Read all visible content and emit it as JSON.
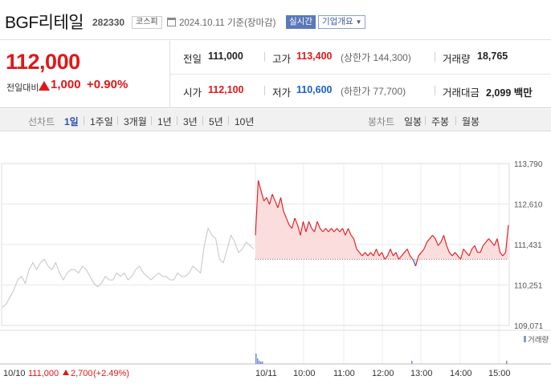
{
  "header": {
    "stock_name": "BGF리테일",
    "stock_code": "282330",
    "market": "코스피",
    "date": "2024.10.11",
    "basis": "기준(장마감)",
    "realtime_label": "실시간",
    "corp_info_label": "기업개요"
  },
  "quote": {
    "current_price": "112,000",
    "change_label": "전일대비",
    "change_amount": "1,000",
    "change_rate": "+0.90%",
    "prev_close_label": "전일",
    "prev_close": "111,000",
    "high_label": "고가",
    "high": "113,400",
    "upper_limit": "(상한가 144,300)",
    "volume_label": "거래량",
    "volume": "18,765",
    "open_label": "시가",
    "open": "112,100",
    "low_label": "저가",
    "low": "110,600",
    "lower_limit": "(하한가 77,700)",
    "turnover_label": "거래대금",
    "turnover": "2,099 백만"
  },
  "toolbar": {
    "line_chart_label": "선차트",
    "periods": [
      "1일",
      "1주일",
      "3개월",
      "1년",
      "3년",
      "5년",
      "10년"
    ],
    "active_period": "1일",
    "candle_chart_label": "봉차트",
    "candles": [
      "일봉",
      "주봉",
      "월봉"
    ]
  },
  "colors": {
    "up": "#e0171a",
    "down": "#1a5fd0",
    "prev_day_line": "#c4c4c4",
    "fill_up": "#fbd7d7"
  },
  "chart_data": {
    "type": "line",
    "y_ticks": [
      "113,790",
      "112,610",
      "111,431",
      "110,251",
      "109,071"
    ],
    "ylim": [
      109071,
      113790
    ],
    "x_ticks": [
      "10/11",
      "10:00",
      "11:00",
      "12:00",
      "13:00",
      "14:00",
      "15:00"
    ],
    "reference_price": 111000,
    "volume_legend": "거래량",
    "footer_date": "10/10",
    "footer_close": "111,000",
    "footer_change": "2,700",
    "footer_rate": "(+2.49%)",
    "prev_day_series": [
      109600,
      109700,
      109900,
      110100,
      110400,
      110500,
      110300,
      110700,
      110900,
      110700,
      110900,
      111000,
      110800,
      110700,
      110900,
      110600,
      110400,
      110600,
      110700,
      110700,
      110600,
      110800,
      110700,
      110500,
      110300,
      110200,
      110300,
      110500,
      110400,
      110400,
      110600,
      110500,
      110600,
      110400,
      110500,
      110700,
      110800,
      110600,
      110500,
      110400,
      110500,
      110600,
      110500,
      110500,
      110400,
      110400,
      110600,
      110500,
      110500,
      110600,
      110800,
      110700,
      110600,
      111400,
      111900,
      111700,
      111600,
      111000,
      110900,
      111300,
      111700,
      111500,
      111200,
      111300,
      111500,
      111400,
      111300
    ],
    "today_series": [
      111700,
      113300,
      113000,
      112700,
      112800,
      112600,
      112900,
      112700,
      112500,
      112800,
      112400,
      112200,
      112000,
      111900,
      112200,
      112000,
      111700,
      112100,
      111800,
      112100,
      111900,
      111800,
      112100,
      111900,
      111800,
      111900,
      111800,
      111900,
      111800,
      111900,
      111800,
      111900,
      111700,
      111900,
      111700,
      111600,
      111300,
      111200,
      111100,
      111200,
      111100,
      111200,
      111100,
      111300,
      111100,
      111200,
      111000,
      111100,
      111300,
      111100,
      111200,
      111000,
      111100,
      111200,
      111300,
      111100,
      111000,
      110800,
      111100,
      111200,
      111300,
      111500,
      111600,
      111700,
      111600,
      111400,
      111500,
      111700,
      111400,
      111200,
      111100,
      111200,
      111100,
      111000,
      111300,
      111200,
      111100,
      111300,
      111400,
      111200,
      111200,
      111400,
      111500,
      111600,
      111500,
      111400,
      111600,
      111200,
      111100,
      111200,
      112000
    ]
  }
}
